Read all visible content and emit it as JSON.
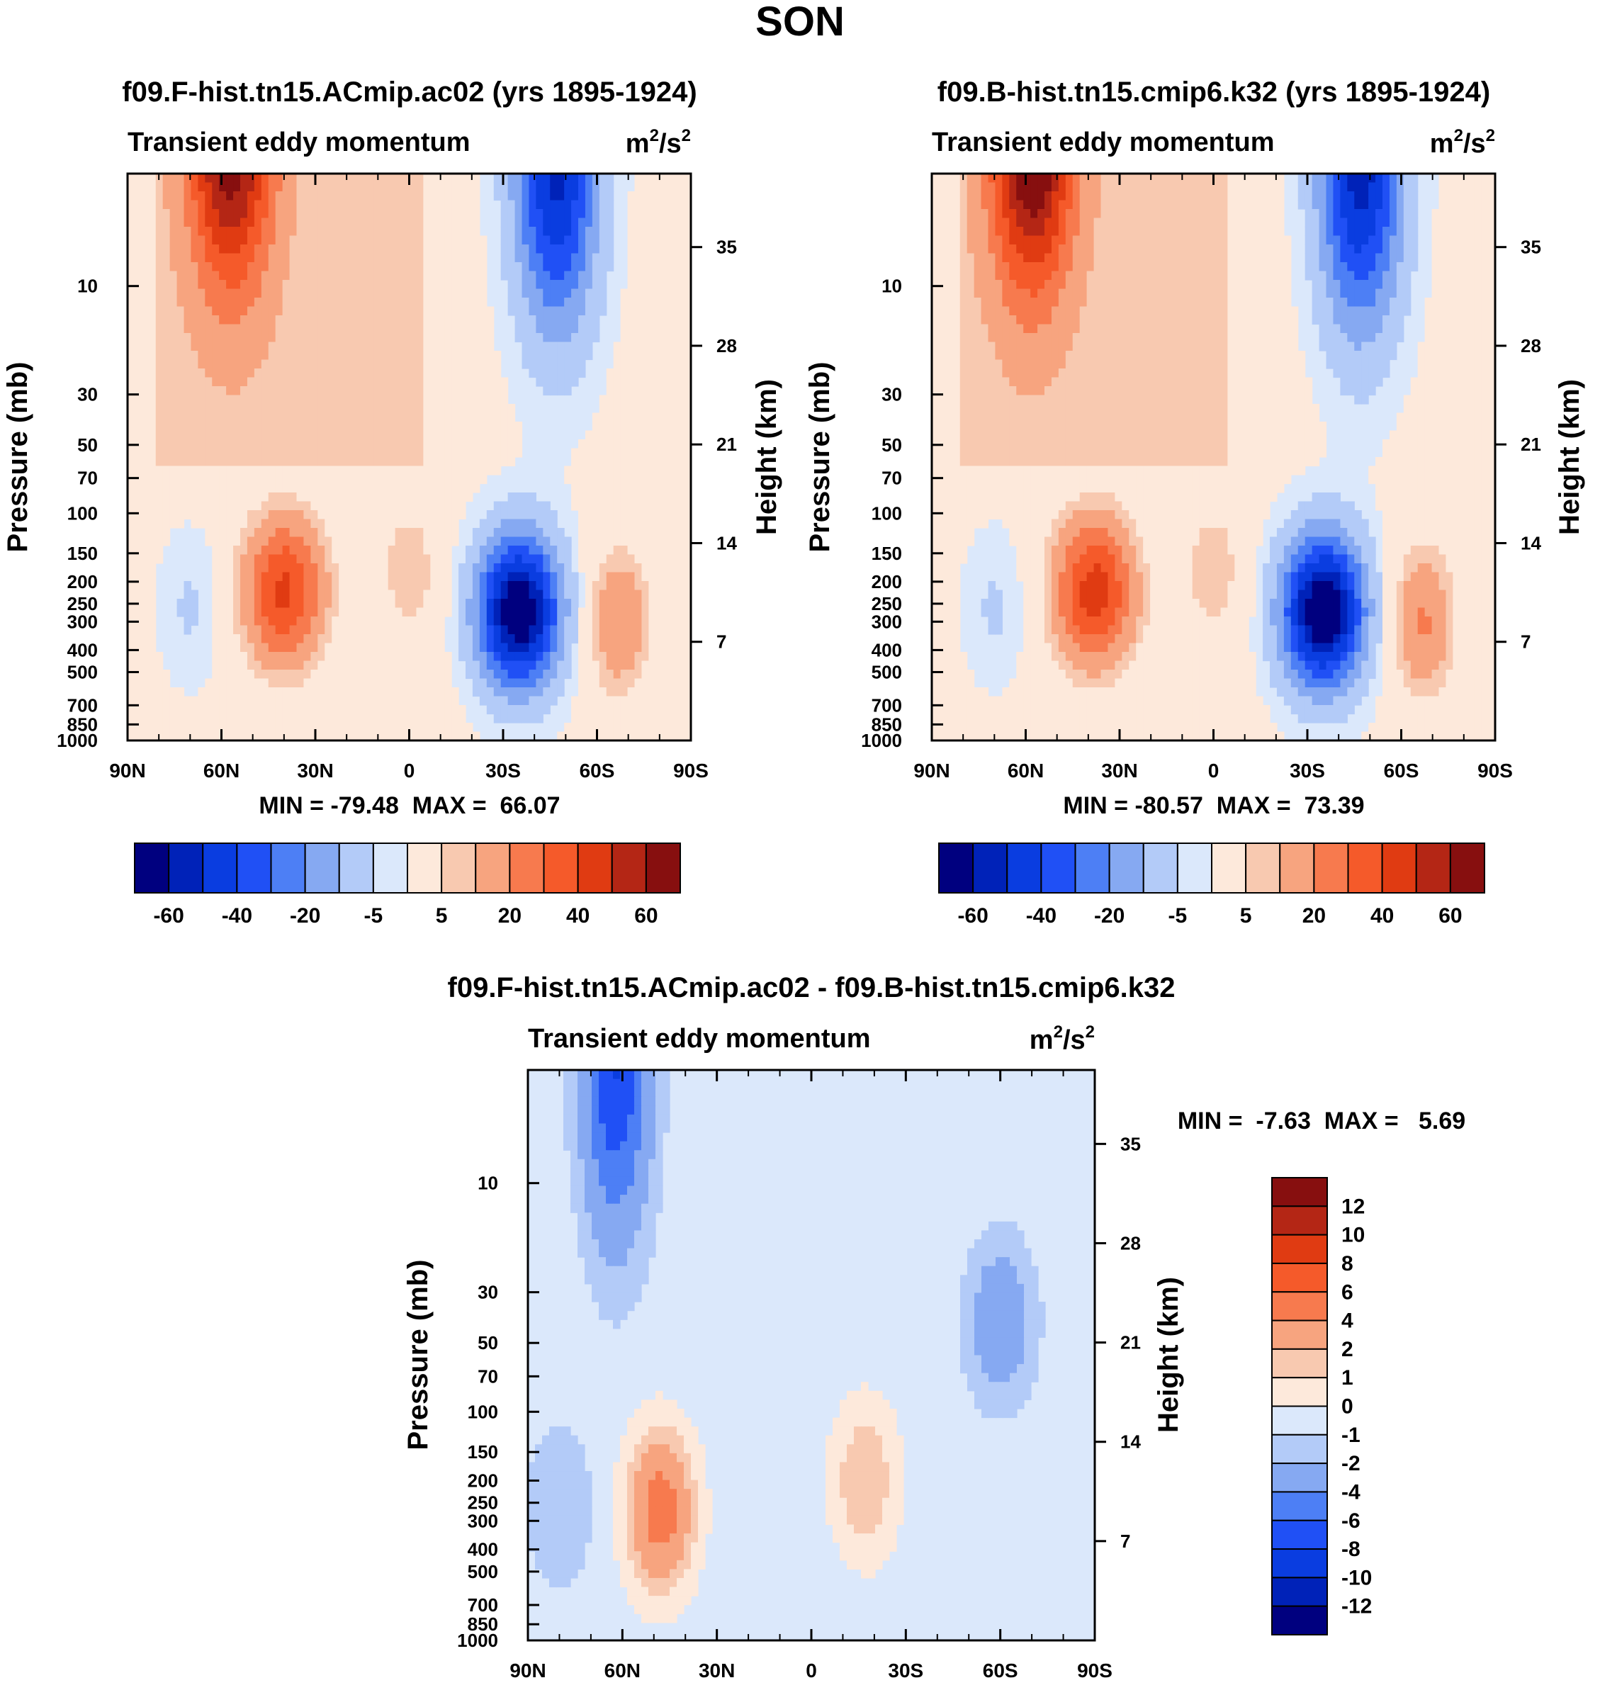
{
  "figure": {
    "season": "SON",
    "units": {
      "base": "m",
      "exp1": "2",
      "sep": "/s",
      "exp2": "2"
    },
    "variable": "Transient eddy momentum",
    "ylabel_left": "Pressure (mb)",
    "ylabel_right": "Height (km)",
    "colors": {
      "colorbar_main": [
        "#00007f",
        "#0022b8",
        "#0a3de0",
        "#2050f5",
        "#4d7ff5",
        "#86a9f2",
        "#b3cbf8",
        "#dbe8fb",
        "#fde9db",
        "#f8c9b0",
        "#f7a47f",
        "#f77a4e",
        "#f55a2a",
        "#e03b12",
        "#b42615",
        "#870f0f"
      ],
      "colorbar_diff": [
        "#00007f",
        "#0022b8",
        "#0a3de0",
        "#2050f5",
        "#4d7ff5",
        "#86a9f2",
        "#b3cbf8",
        "#dbe8fb",
        "#fde9db",
        "#f8c9b0",
        "#f7a47f",
        "#f77a4e",
        "#f55a2a",
        "#e03b12",
        "#b42615",
        "#870f0f"
      ]
    }
  },
  "chart_data": [
    {
      "type": "heatmap",
      "title": "f09.F-hist.tn15.ACmip.ac02 (yrs 1895-1924)",
      "subtitle": "Transient eddy momentum",
      "xlabel": "",
      "ylabel": "Pressure (mb)",
      "ylabel_right": "Height (km)",
      "x_ticks": [
        "90N",
        "60N",
        "30N",
        "0",
        "30S",
        "60S",
        "90S"
      ],
      "y_ticks": [
        "10",
        "30",
        "50",
        "70",
        "100",
        "150",
        "200",
        "250",
        "300",
        "400",
        "500",
        "700",
        "850",
        "1000"
      ],
      "y_right_ticks": [
        "35",
        "28",
        "21",
        "14",
        "7"
      ],
      "min_label": "MIN = -79.48  MAX =  66.07",
      "min": -79.48,
      "max": 66.07,
      "colorbar_labels": [
        "-60",
        "-40",
        "-20",
        "-5",
        "5",
        "20",
        "40",
        "60"
      ],
      "features": [
        {
          "lat": 57,
          "p": 2,
          "value": 66,
          "sign": "positive"
        },
        {
          "lat": 40,
          "p": 220,
          "value": 45,
          "sign": "positive"
        },
        {
          "lat": 0,
          "p": 180,
          "value": 12,
          "sign": "positive"
        },
        {
          "lat": -35,
          "p": 270,
          "value": -79,
          "sign": "negative"
        },
        {
          "lat": -47,
          "p": 3,
          "value": -60,
          "sign": "negative"
        },
        {
          "lat": -67,
          "p": 300,
          "value": 22,
          "sign": "positive"
        },
        {
          "lat": 70,
          "p": 260,
          "value": -8,
          "sign": "negative"
        }
      ]
    },
    {
      "type": "heatmap",
      "title": "f09.B-hist.tn15.cmip6.k32 (yrs 1895-1924)",
      "subtitle": "Transient eddy momentum",
      "xlabel": "",
      "ylabel": "Pressure (mb)",
      "ylabel_right": "Height (km)",
      "x_ticks": [
        "90N",
        "60N",
        "30N",
        "0",
        "30S",
        "60S",
        "90S"
      ],
      "y_ticks": [
        "10",
        "30",
        "50",
        "70",
        "100",
        "150",
        "200",
        "250",
        "300",
        "400",
        "500",
        "700",
        "850",
        "1000"
      ],
      "y_right_ticks": [
        "35",
        "28",
        "21",
        "14",
        "7"
      ],
      "min_label": "MIN = -80.57  MAX =  73.39",
      "min": -80.57,
      "max": 73.39,
      "colorbar_labels": [
        "-60",
        "-40",
        "-20",
        "-5",
        "5",
        "20",
        "40",
        "60"
      ],
      "features": [
        {
          "lat": 58,
          "p": 2,
          "value": 73,
          "sign": "positive"
        },
        {
          "lat": 38,
          "p": 220,
          "value": 48,
          "sign": "positive"
        },
        {
          "lat": 0,
          "p": 180,
          "value": 12,
          "sign": "positive"
        },
        {
          "lat": -35,
          "p": 270,
          "value": -80,
          "sign": "negative"
        },
        {
          "lat": -47,
          "p": 3,
          "value": -62,
          "sign": "negative"
        },
        {
          "lat": -67,
          "p": 300,
          "value": 24,
          "sign": "positive"
        },
        {
          "lat": 70,
          "p": 260,
          "value": -8,
          "sign": "negative"
        }
      ]
    },
    {
      "type": "heatmap",
      "title": "f09.F-hist.tn15.ACmip.ac02 - f09.B-hist.tn15.cmip6.k32",
      "subtitle": "Transient eddy momentum",
      "xlabel": "",
      "ylabel": "Pressure (mb)",
      "ylabel_right": "Height (km)",
      "x_ticks": [
        "90N",
        "60N",
        "30N",
        "0",
        "30S",
        "60S",
        "90S"
      ],
      "y_ticks": [
        "10",
        "30",
        "50",
        "70",
        "100",
        "150",
        "200",
        "250",
        "300",
        "400",
        "500",
        "700",
        "850",
        "1000"
      ],
      "y_right_ticks": [
        "35",
        "28",
        "21",
        "14",
        "7"
      ],
      "min_label": "MIN =  -7.63  MAX =   5.69",
      "min": -7.63,
      "max": 5.69,
      "colorbar_labels": [
        "12",
        "10",
        "8",
        "6",
        "4",
        "2",
        "1",
        "0",
        "-1",
        "-2",
        "-4",
        "-6",
        "-8",
        "-10",
        "-12"
      ],
      "features": [
        {
          "lat": 62,
          "p": 3,
          "value": -7.6,
          "sign": "negative"
        },
        {
          "lat": 48,
          "p": 270,
          "value": 5.7,
          "sign": "positive"
        },
        {
          "lat": -17,
          "p": 200,
          "value": 2.5,
          "sign": "positive"
        },
        {
          "lat": -60,
          "p": 40,
          "value": -3,
          "sign": "negative"
        },
        {
          "lat": 80,
          "p": 260,
          "value": -1.5,
          "sign": "negative"
        }
      ]
    }
  ]
}
